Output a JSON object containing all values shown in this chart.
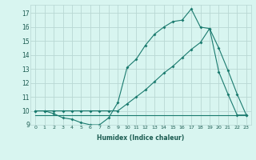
{
  "xlabel": "Humidex (Indice chaleur)",
  "bg_color": "#d8f5f0",
  "grid_color": "#b8d8d4",
  "line_color": "#1a7a6e",
  "xlim": [
    -0.5,
    23.5
  ],
  "ylim": [
    9.0,
    17.6
  ],
  "yticks": [
    9,
    10,
    11,
    12,
    13,
    14,
    15,
    16,
    17
  ],
  "xticks": [
    0,
    1,
    2,
    3,
    4,
    5,
    6,
    7,
    8,
    9,
    10,
    11,
    12,
    13,
    14,
    15,
    16,
    17,
    18,
    19,
    20,
    21,
    22,
    23
  ],
  "series1_x": [
    0,
    1,
    2,
    3,
    4,
    5,
    6,
    7,
    8,
    9,
    10,
    11,
    12,
    13,
    14,
    15,
    16,
    17,
    18,
    19,
    20,
    21,
    22,
    23
  ],
  "series1_y": [
    10.0,
    10.0,
    9.8,
    9.5,
    9.4,
    9.15,
    9.0,
    9.0,
    9.5,
    10.6,
    13.1,
    13.7,
    14.7,
    15.5,
    16.0,
    16.4,
    16.5,
    17.3,
    16.0,
    15.9,
    12.8,
    11.2,
    9.7,
    9.7
  ],
  "series2_x": [
    0,
    1,
    2,
    3,
    4,
    5,
    6,
    7,
    8,
    9,
    10,
    11,
    12,
    13,
    14,
    15,
    16,
    17,
    18,
    19,
    20,
    21,
    22,
    23
  ],
  "series2_y": [
    9.7,
    9.7,
    9.7,
    9.7,
    9.7,
    9.7,
    9.7,
    9.7,
    9.7,
    9.7,
    9.7,
    9.7,
    9.7,
    9.7,
    9.7,
    9.7,
    9.7,
    9.7,
    9.7,
    9.7,
    9.7,
    9.7,
    9.7,
    9.7
  ],
  "series3_x": [
    0,
    1,
    2,
    3,
    4,
    5,
    6,
    7,
    8,
    9,
    10,
    11,
    12,
    13,
    14,
    15,
    16,
    17,
    18,
    19,
    20,
    21,
    22,
    23
  ],
  "series3_y": [
    10.0,
    10.0,
    10.0,
    10.0,
    10.0,
    10.0,
    10.0,
    10.0,
    10.0,
    10.0,
    10.5,
    11.0,
    11.5,
    12.1,
    12.7,
    13.2,
    13.8,
    14.4,
    14.9,
    15.9,
    14.5,
    12.9,
    11.2,
    9.7
  ]
}
